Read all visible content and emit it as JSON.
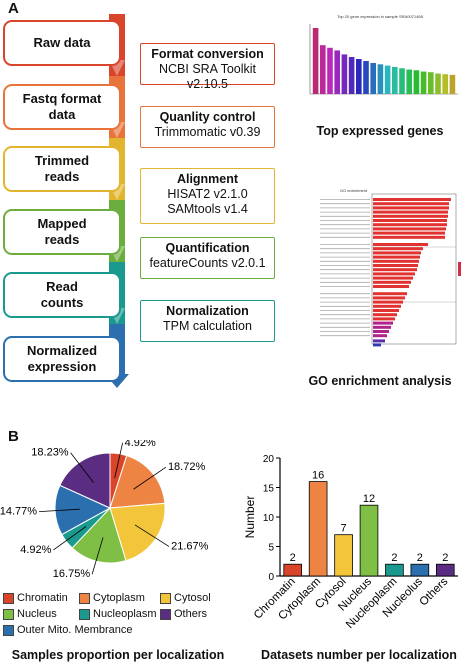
{
  "panel_a": {
    "letter": "A",
    "steps": [
      {
        "label": "Raw data",
        "color": "#d9452b"
      },
      {
        "label": "Fastq format data",
        "color": "#e8743b"
      },
      {
        "label": "Trimmed reads",
        "color": "#e2b52f"
      },
      {
        "label": "Mapped reads",
        "color": "#6cae3e"
      },
      {
        "label": "Read counts",
        "color": "#1a9a8f"
      },
      {
        "label": "Normalized expression",
        "color": "#2c6fae"
      }
    ],
    "tools": [
      {
        "title": "Format conversion",
        "sub": "NCBI SRA Toolkit v2.10.5",
        "color": "#d9452b"
      },
      {
        "title": "Quanlity control",
        "sub": "Trimmomatic v0.39",
        "color": "#e8743b"
      },
      {
        "title": "Alignment",
        "sub": "HISAT2 v2.1.0",
        "sub2": "SAMtools v1.4",
        "color": "#e2b52f"
      },
      {
        "title": "Quantification",
        "sub": "featureCounts v2.0.1",
        "color": "#6cae3e"
      },
      {
        "title": "Normalization",
        "sub": "TPM calculation",
        "color": "#1a9a8f"
      }
    ],
    "top_genes_title": "Top 20 gene expression in sample SRA0071468",
    "top_genes_caption": "Top expressed genes",
    "top_genes_values": [
      100,
      74,
      70,
      66,
      60,
      56,
      53,
      50,
      47,
      45,
      43,
      41,
      39,
      37,
      36,
      34,
      33,
      31,
      30,
      29
    ],
    "go_title": "GO enrichment",
    "go_caption": "GO enrichment analysis"
  },
  "panel_b": {
    "letter": "B",
    "pie_caption": "Samples proportion per localization",
    "bar_caption": "Datasets number per localization",
    "legend": [
      {
        "label": "Chromatin",
        "color": "#d9452b"
      },
      {
        "label": "Cytoplasm",
        "color": "#ee8444"
      },
      {
        "label": "Cytosol",
        "color": "#f2c53a"
      },
      {
        "label": "Nucleus",
        "color": "#7fbf45"
      },
      {
        "label": "Nucleoplasm",
        "color": "#1a9a8f"
      },
      {
        "label": "Others",
        "color": "#5b2d82"
      },
      {
        "label": "Outer Mito. Membrance",
        "color": "#2c6fae"
      }
    ]
  },
  "chart_data": [
    {
      "type": "pie",
      "labels": [
        "Chromatin",
        "Cytoplasm",
        "Cytosol",
        "Nucleus",
        "Nucleoplasm",
        "Outer Mito. Membrance",
        "Others"
      ],
      "values": [
        4.92,
        18.72,
        21.67,
        16.75,
        4.92,
        14.77,
        18.23
      ],
      "value_labels": [
        "4.92%",
        "18.72%",
        "21.67%",
        "16.75%",
        "4.92%",
        "14.77%",
        "18.23%"
      ],
      "colors": [
        "#d9452b",
        "#ee8444",
        "#f2c53a",
        "#7fbf45",
        "#1a9a8f",
        "#2c6fae",
        "#5b2d82"
      ]
    },
    {
      "type": "bar",
      "categories": [
        "Chromatin",
        "Cytoplasm",
        "Cytosol",
        "Nucleus",
        "Nucleoplasm",
        "Nucleolus",
        "Others"
      ],
      "values": [
        2,
        16,
        7,
        12,
        2,
        2,
        2
      ],
      "colors": [
        "#d9452b",
        "#ee8444",
        "#f2c53a",
        "#7fbf45",
        "#1a9a8f",
        "#2c6fae",
        "#5b2d82"
      ],
      "ylabel": "Number",
      "ylim": [
        0,
        20
      ],
      "yticks": [
        0,
        5,
        10,
        15,
        20
      ],
      "grid": false
    }
  ]
}
